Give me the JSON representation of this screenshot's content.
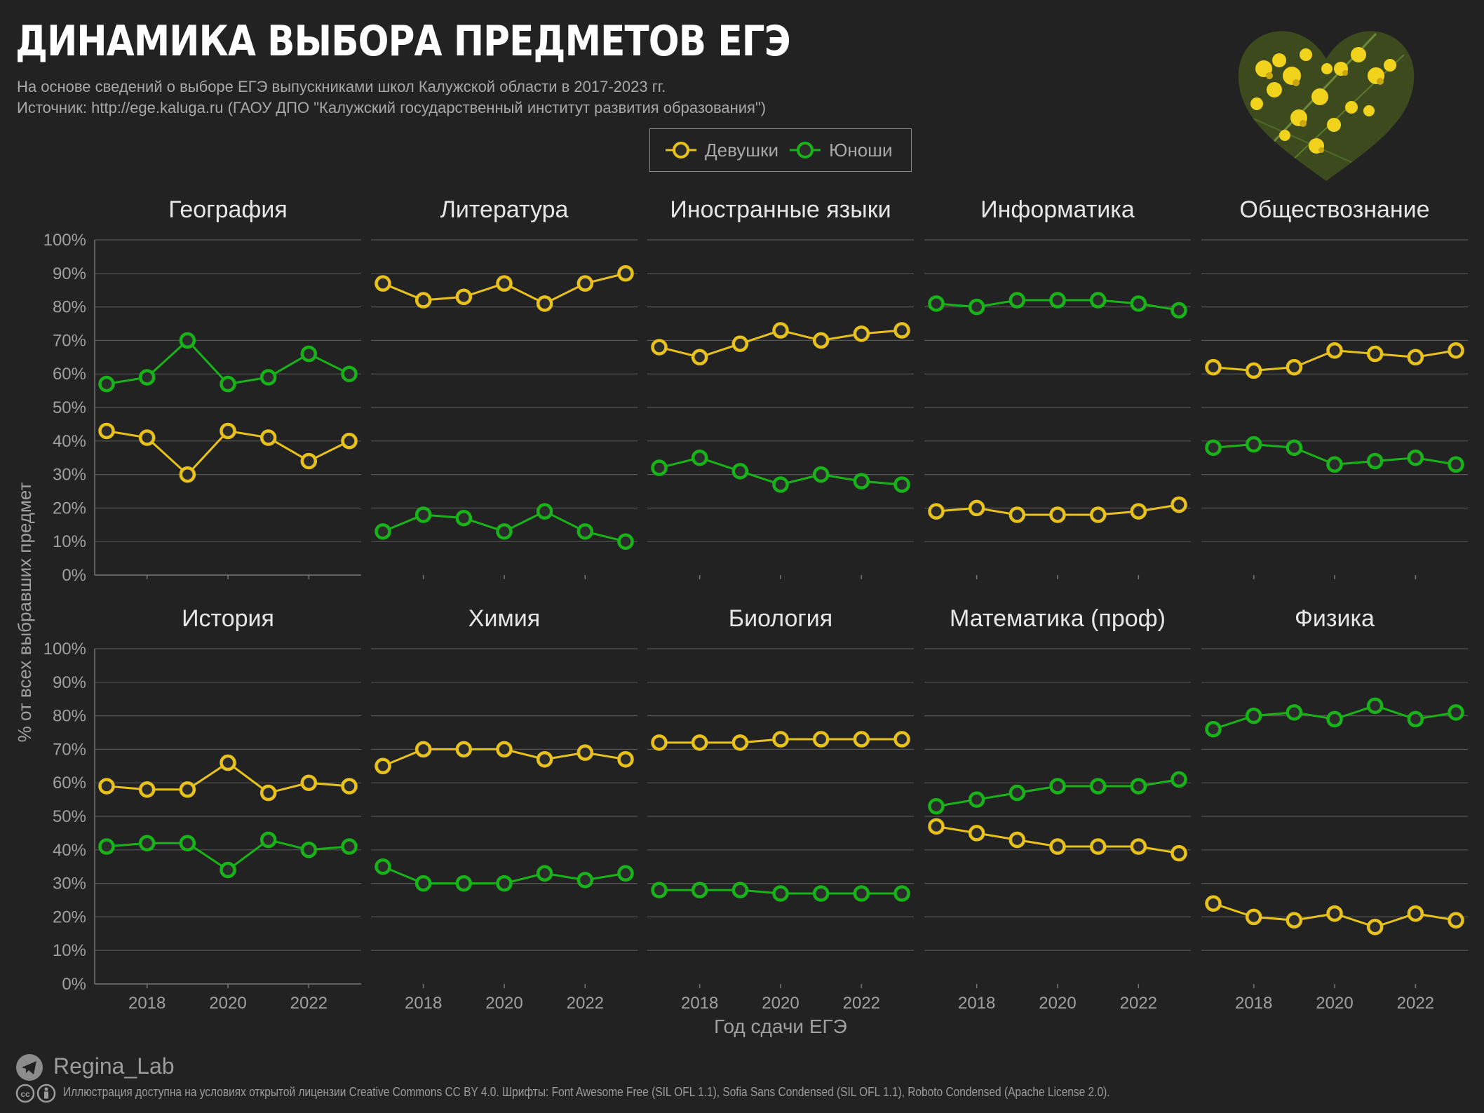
{
  "title": "ДИНАМИКА ВЫБОРА ПРЕДМЕТОВ ЕГЭ",
  "subtitle": "На основе сведений о выборе ЕГЭ выпускниками школ Калужской области в 2017-2023 гг.",
  "source": "Источник: http://ege.kaluga.ru (ГАОУ ДПО \"Калужский государственный институт развития образования\")",
  "legend": {
    "girls": "Девушки",
    "boys": "Юноши"
  },
  "colors": {
    "girls": "#e8c21a",
    "boys": "#18b318",
    "background": "#222222",
    "grid": "#555555",
    "marker_fill": "#2b2b2b"
  },
  "footer": {
    "author": "Regina_Lab",
    "license": "Иллюстрация доступна на условиях открытой лицензии Creative Commons CC BY 4.0.  Шрифты: Font Awesome Free (SIL OFL 1.1), Sofia Sans Condensed (SIL OFL 1.1), Roboto Condensed (Apache License 2.0).",
    "telegram_icon": "telegram-icon",
    "cc_icon": "creative-commons-icon"
  },
  "chart_data": {
    "type": "line",
    "layout": "small-multiples",
    "xlabel": "Год сдачи ЕГЭ",
    "ylabel": "% от всех выбравших предмет",
    "x": [
      2017,
      2018,
      2019,
      2020,
      2021,
      2022,
      2023
    ],
    "x_ticks": [
      2018,
      2020,
      2022
    ],
    "ylim": [
      0,
      100
    ],
    "y_ticks": [
      "0%",
      "10%",
      "20%",
      "30%",
      "40%",
      "50%",
      "60%",
      "70%",
      "80%",
      "90%",
      "100%"
    ],
    "panels": [
      {
        "title": "География",
        "series": [
          {
            "name": "Девушки",
            "values": [
              43,
              41,
              30,
              43,
              41,
              34,
              40
            ]
          },
          {
            "name": "Юноши",
            "values": [
              57,
              59,
              70,
              57,
              59,
              66,
              60
            ]
          }
        ]
      },
      {
        "title": "Литература",
        "series": [
          {
            "name": "Девушки",
            "values": [
              87,
              82,
              83,
              87,
              81,
              87,
              90
            ]
          },
          {
            "name": "Юноши",
            "values": [
              13,
              18,
              17,
              13,
              19,
              13,
              10
            ]
          }
        ]
      },
      {
        "title": "Иностранные языки",
        "series": [
          {
            "name": "Девушки",
            "values": [
              68,
              65,
              69,
              73,
              70,
              72,
              73
            ]
          },
          {
            "name": "Юноши",
            "values": [
              32,
              35,
              31,
              27,
              30,
              28,
              27
            ]
          }
        ]
      },
      {
        "title": "Информатика",
        "series": [
          {
            "name": "Девушки",
            "values": [
              19,
              20,
              18,
              18,
              18,
              19,
              21
            ]
          },
          {
            "name": "Юноши",
            "values": [
              81,
              80,
              82,
              82,
              82,
              81,
              79
            ]
          }
        ]
      },
      {
        "title": "Обществознание",
        "series": [
          {
            "name": "Девушки",
            "values": [
              62,
              61,
              62,
              67,
              66,
              65,
              67
            ]
          },
          {
            "name": "Юноши",
            "values": [
              38,
              39,
              38,
              33,
              34,
              35,
              33
            ]
          }
        ]
      },
      {
        "title": "История",
        "series": [
          {
            "name": "Девушки",
            "values": [
              59,
              58,
              58,
              66,
              57,
              60,
              59
            ]
          },
          {
            "name": "Юноши",
            "values": [
              41,
              42,
              42,
              34,
              43,
              40,
              41
            ]
          }
        ]
      },
      {
        "title": "Химия",
        "series": [
          {
            "name": "Девушки",
            "values": [
              65,
              70,
              70,
              70,
              67,
              69,
              67
            ]
          },
          {
            "name": "Юноши",
            "values": [
              35,
              30,
              30,
              30,
              33,
              31,
              33
            ]
          }
        ]
      },
      {
        "title": "Биология",
        "series": [
          {
            "name": "Девушки",
            "values": [
              72,
              72,
              72,
              73,
              73,
              73,
              73
            ]
          },
          {
            "name": "Юноши",
            "values": [
              28,
              28,
              28,
              27,
              27,
              27,
              27
            ]
          }
        ]
      },
      {
        "title": "Математика (проф)",
        "series": [
          {
            "name": "Девушки",
            "values": [
              47,
              45,
              43,
              41,
              41,
              41,
              39
            ]
          },
          {
            "name": "Юноши",
            "values": [
              53,
              55,
              57,
              59,
              59,
              59,
              61
            ]
          }
        ]
      },
      {
        "title": "Физика",
        "series": [
          {
            "name": "Девушки",
            "values": [
              24,
              20,
              19,
              21,
              17,
              21,
              19
            ]
          },
          {
            "name": "Юноши",
            "values": [
              76,
              80,
              81,
              79,
              83,
              79,
              81
            ]
          }
        ]
      }
    ]
  }
}
